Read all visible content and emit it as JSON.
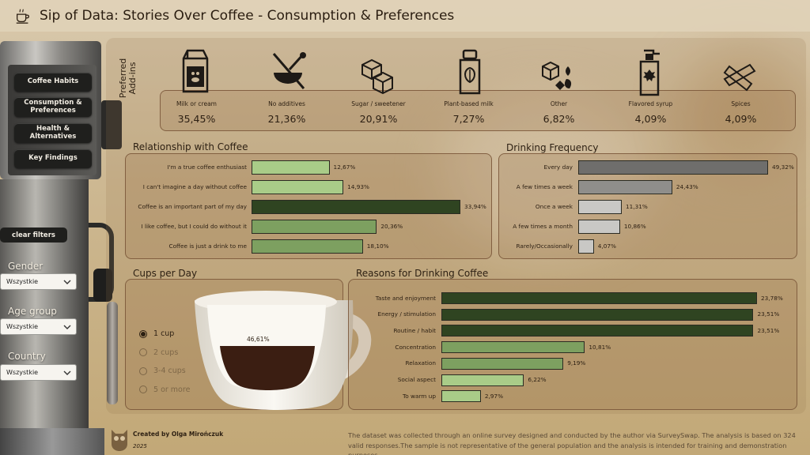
{
  "header": {
    "title": "Sip of Data: Stories Over Coffee - Consumption & Preferences"
  },
  "nav": [
    {
      "label": "Coffee Habits"
    },
    {
      "label": "Consumption & Preferences"
    },
    {
      "label": "Health & Alternatives"
    },
    {
      "label": "Key Findings"
    }
  ],
  "clear_filters": "clear filters",
  "slicers": [
    {
      "label": "Gender",
      "value": "Wszystkie"
    },
    {
      "label": "Age group",
      "value": "Wszystkie"
    },
    {
      "label": "Country",
      "value": "Wszystkie"
    }
  ],
  "addins": {
    "title": "Preferred Add-ins",
    "items": [
      {
        "name": "Milk or cream",
        "value": "35,45%",
        "icon": "milk-carton-icon"
      },
      {
        "name": "No additives",
        "value": "21,36%",
        "icon": "no-additives-icon"
      },
      {
        "name": "Sugar / sweetener",
        "value": "20,91%",
        "icon": "sugar-cubes-icon"
      },
      {
        "name": "Plant-based milk",
        "value": "7,27%",
        "icon": "plant-milk-icon"
      },
      {
        "name": "Other",
        "value": "6,82%",
        "icon": "other-icon"
      },
      {
        "name": "Flavored syrup",
        "value": "4,09%",
        "icon": "syrup-bottle-icon"
      },
      {
        "name": "Spices",
        "value": "4,09%",
        "icon": "cinnamon-icon"
      }
    ]
  },
  "relationship": {
    "title": "Relationship with Coffee",
    "items": [
      {
        "label": "I'm a true coffee enthusiast",
        "value": 12.67,
        "text": "12,67%"
      },
      {
        "label": "I can't imagine a day without coffee",
        "value": 14.93,
        "text": "14,93%"
      },
      {
        "label": "Coffee is an important part of my day",
        "value": 33.94,
        "text": "33,94%"
      },
      {
        "label": "I like coffee, but I could do without it",
        "value": 20.36,
        "text": "20,36%"
      },
      {
        "label": "Coffee is just a drink to me",
        "value": 18.1,
        "text": "18,10%"
      }
    ]
  },
  "frequency": {
    "title": "Drinking Frequency",
    "items": [
      {
        "label": "Every day",
        "value": 49.32,
        "text": "49,32%"
      },
      {
        "label": "A few times a week",
        "value": 24.43,
        "text": "24,43%"
      },
      {
        "label": "Once a week",
        "value": 11.31,
        "text": "11,31%"
      },
      {
        "label": "A few times a month",
        "value": 10.86,
        "text": "10,86%"
      },
      {
        "label": "Rarely/Occasionally",
        "value": 4.07,
        "text": "4,07%"
      }
    ]
  },
  "cups": {
    "title": "Cups per Day",
    "value_text": "46,61%",
    "fill_fraction": 0.4661,
    "options": [
      {
        "label": "1 cup",
        "selected": true
      },
      {
        "label": "2 cups",
        "selected": false
      },
      {
        "label": "3-4 cups",
        "selected": false
      },
      {
        "label": "5 or more",
        "selected": false
      }
    ]
  },
  "reasons": {
    "title": "Reasons for Drinking Coffee",
    "items": [
      {
        "label": "Taste and enjoyment",
        "value": 23.78,
        "text": "23,78%"
      },
      {
        "label": "Energy / stimulation",
        "value": 23.51,
        "text": "23,51%"
      },
      {
        "label": "Routine / habit",
        "value": 23.51,
        "text": "23,51%"
      },
      {
        "label": "Concentration",
        "value": 10.81,
        "text": "10,81%"
      },
      {
        "label": "Relaxation",
        "value": 9.19,
        "text": "9,19%"
      },
      {
        "label": "Social aspect",
        "value": 6.22,
        "text": "6,22%"
      },
      {
        "label": "To warm up",
        "value": 2.97,
        "text": "2,97%"
      }
    ]
  },
  "footer": {
    "author": "Created by Olga Mirończuk",
    "year": "2025",
    "note": "The dataset was collected through an online survey designed and conducted by the author via SurveySwap. The analysis is based on 324 valid responses.The sample is not representative of the general population and the analysis is intended for training and demonstration purposes."
  },
  "colors": {
    "dark_green": "#2f4421",
    "mid_green": "#7da060",
    "light_green": "#a9cc88",
    "dark_gray": "#6f6e6c",
    "mid_gray": "#8f8e8b",
    "light_gray": "#c9c8c5"
  }
}
